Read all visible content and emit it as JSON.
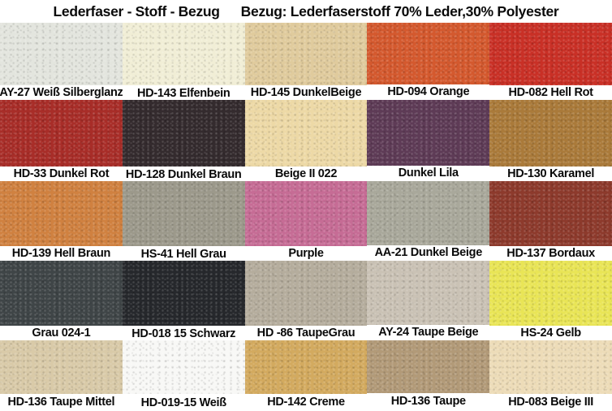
{
  "title": {
    "left": "Lederfaser - Stoff - Bezug",
    "right": "Bezug: Lederfaserstoff 70% Leder,30% Polyester"
  },
  "swatch_rows": [
    [
      {
        "label": "AY-27 Weiß Silberglanz",
        "color": "#e3e5de"
      },
      {
        "label": "HD-143 Elfenbein",
        "color": "#f1eed6"
      },
      {
        "label": "HD-145 DunkelBeige",
        "color": "#e0cb9d"
      },
      {
        "label": "HD-094 Orange",
        "color": "#d4592e"
      },
      {
        "label": "HD-082 Hell Rot",
        "color": "#c93026"
      }
    ],
    [
      {
        "label": "HD-33 Dunkel Rot",
        "color": "#a82d28"
      },
      {
        "label": "HD-128 Dunkel Braun",
        "color": "#342b2e"
      },
      {
        "label": "Beige II 022",
        "color": "#edd9a6"
      },
      {
        "label": "Dunkel Lila",
        "color": "#5e3b56"
      },
      {
        "label": "HD-130 Karamel",
        "color": "#aa7a3a"
      }
    ],
    [
      {
        "label": "HD-139 Hell Braun",
        "color": "#d08140"
      },
      {
        "label": "HS-41 Hell Grau",
        "color": "#9c998b"
      },
      {
        "label": "Purple",
        "color": "#c66c95"
      },
      {
        "label": "AA-21 Dunkel Beige",
        "color": "#a9a89b"
      },
      {
        "label": "HD-137 Bordaux",
        "color": "#8d3a2c"
      }
    ],
    [
      {
        "label": "Grau 024-1",
        "color": "#3f4547"
      },
      {
        "label": "HD-018 15 Schwarz",
        "color": "#26282c"
      },
      {
        "label": "HD -86 TaupeGrau",
        "color": "#b5ad9d"
      },
      {
        "label": "AY-24 Taupe Beige",
        "color": "#cac2b5"
      },
      {
        "label": "HS-24 Gelb",
        "color": "#e9e556"
      }
    ],
    [
      {
        "label": "HD-136 Taupe Mittel",
        "color": "#d9caa8"
      },
      {
        "label": "HD-019-15 Weiß",
        "color": "#f8f8f6"
      },
      {
        "label": "HD-142 Creme",
        "color": "#d3aa5f"
      },
      {
        "label": "HD-136 Taupe",
        "color": "#b29a78"
      },
      {
        "label": "HD-083 Beige III",
        "color": "#eddcb8"
      }
    ]
  ]
}
